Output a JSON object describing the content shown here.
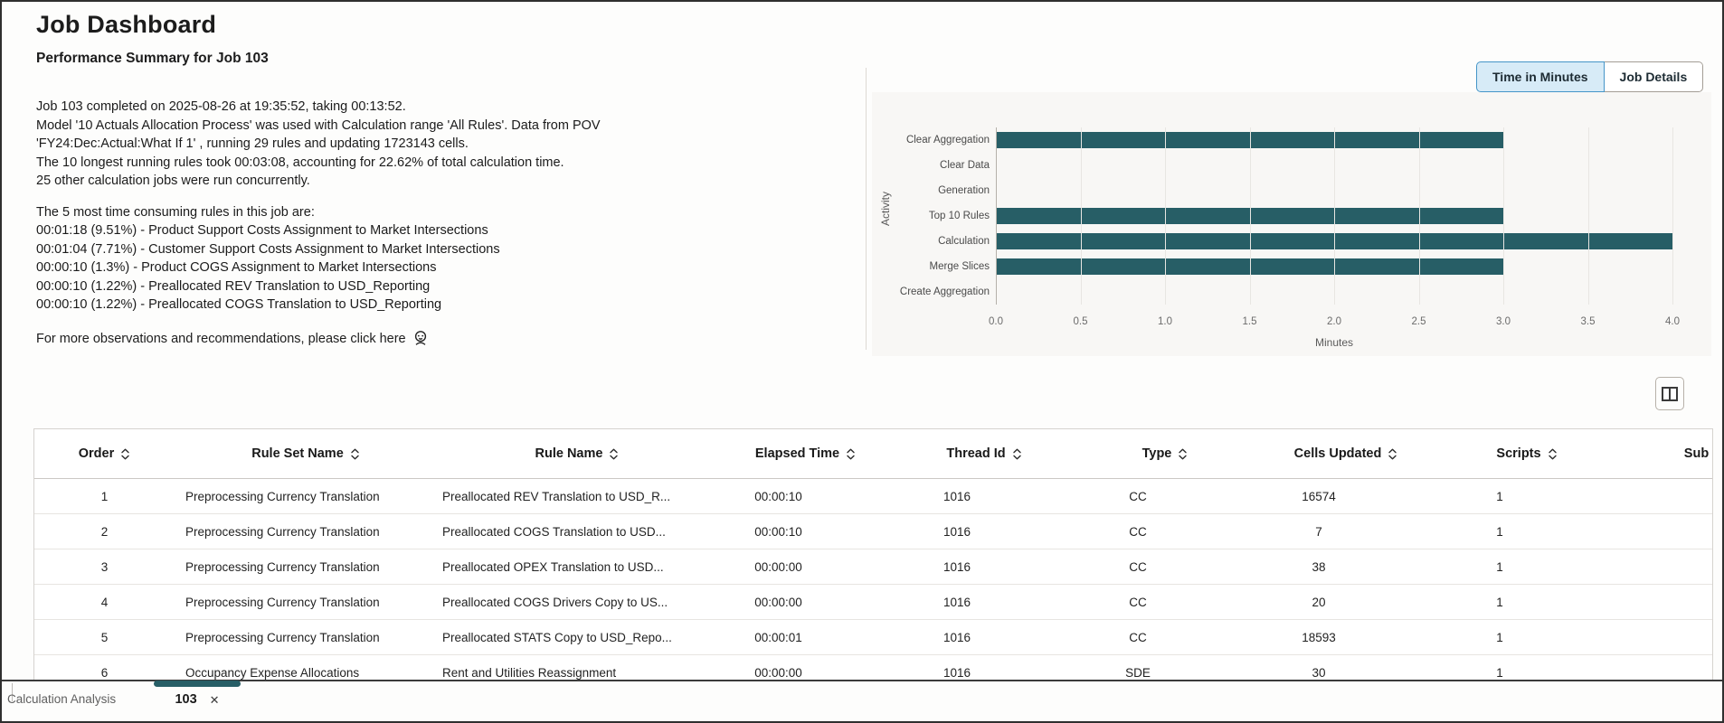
{
  "title": "Job Dashboard",
  "colors": {
    "accent_teal": "#275e66",
    "active_toggle_bg": "#d7ebf7",
    "active_toggle_border": "#4595c8"
  },
  "summary": {
    "heading": "Performance Summary for Job 103",
    "paragraphs": [
      [
        "Job 103 completed on 2025-08-26 at 19:35:52, taking 00:13:52.",
        "Model '10 Actuals Allocation Process' was used with Calculation range 'All Rules'. Data from POV",
        "'FY24:Dec:Actual:What If 1' , running 29 rules and updating 1723143 cells.",
        "The 10 longest running rules took 00:03:08, accounting for 22.62% of total calculation time.",
        "25 other calculation jobs were run concurrently."
      ],
      [
        "The 5 most time consuming rules in this job are:",
        "00:01:18 (9.51%) - Product Support Costs Assignment to Market Intersections",
        "00:01:04 (7.71%) - Customer Support Costs Assignment to Market Intersections",
        "00:00:10 (1.3%) - Product COGS Assignment to Market Intersections",
        "00:00:10 (1.22%) - Preallocated REV Translation to USD_Reporting",
        "00:00:10 (1.22%) - Preallocated COGS Translation to USD_Reporting"
      ]
    ],
    "more_text": "For more observations and recommendations, please click here"
  },
  "toggle": {
    "options": [
      {
        "label": "Time in Minutes",
        "active": true
      },
      {
        "label": "Job Details",
        "active": false
      }
    ]
  },
  "chart_data": {
    "type": "bar",
    "orientation": "horizontal",
    "title": "",
    "categories": [
      "Clear Aggregation",
      "Clear Data",
      "Generation",
      "Top 10 Rules",
      "Calculation",
      "Merge Slices",
      "Create Aggregation"
    ],
    "values": [
      3.0,
      0,
      0,
      3.0,
      4.0,
      3.0,
      0
    ],
    "xlabel": "Minutes",
    "ylabel": "Activity",
    "xlim": [
      0.0,
      4.0
    ],
    "xticks": [
      "0.0",
      "0.5",
      "1.0",
      "1.5",
      "2.0",
      "2.5",
      "3.0",
      "3.5",
      "4.0"
    ],
    "grid": true,
    "bar_color": "#275e66",
    "legend": "none"
  },
  "table": {
    "columns": [
      {
        "label": "Order",
        "sortable": true
      },
      {
        "label": "Rule Set Name",
        "sortable": true
      },
      {
        "label": "Rule Name",
        "sortable": true
      },
      {
        "label": "Elapsed Time",
        "sortable": true
      },
      {
        "label": "Thread Id",
        "sortable": true
      },
      {
        "label": "Type",
        "sortable": true
      },
      {
        "label": "Cells Updated",
        "sortable": true
      },
      {
        "label": "Scripts",
        "sortable": true
      },
      {
        "label": "Sub",
        "sortable": false
      }
    ],
    "rows": [
      [
        "1",
        "Preprocessing Currency Translation",
        "Preallocated REV Translation to USD_R...",
        "00:00:10",
        "1016",
        "CC",
        "16574",
        "1",
        ""
      ],
      [
        "2",
        "Preprocessing Currency Translation",
        "Preallocated COGS Translation to USD...",
        "00:00:10",
        "1016",
        "CC",
        "7",
        "1",
        ""
      ],
      [
        "3",
        "Preprocessing Currency Translation",
        "Preallocated OPEX Translation to USD...",
        "00:00:00",
        "1016",
        "CC",
        "38",
        "1",
        ""
      ],
      [
        "4",
        "Preprocessing Currency Translation",
        "Preallocated COGS Drivers Copy to US...",
        "00:00:00",
        "1016",
        "CC",
        "20",
        "1",
        ""
      ],
      [
        "5",
        "Preprocessing Currency Translation",
        "Preallocated STATS Copy to USD_Repo...",
        "00:00:01",
        "1016",
        "CC",
        "18593",
        "1",
        ""
      ],
      [
        "6",
        "Occupancy Expense Allocations",
        "Rent and Utilities Reassignment",
        "00:00:00",
        "1016",
        "SDE",
        "30",
        "1",
        ""
      ]
    ]
  },
  "bottom_bar": {
    "group_label": "Calculation Analysis",
    "tabs": [
      {
        "label": "103",
        "active": true,
        "close_glyph": "✕"
      }
    ]
  }
}
